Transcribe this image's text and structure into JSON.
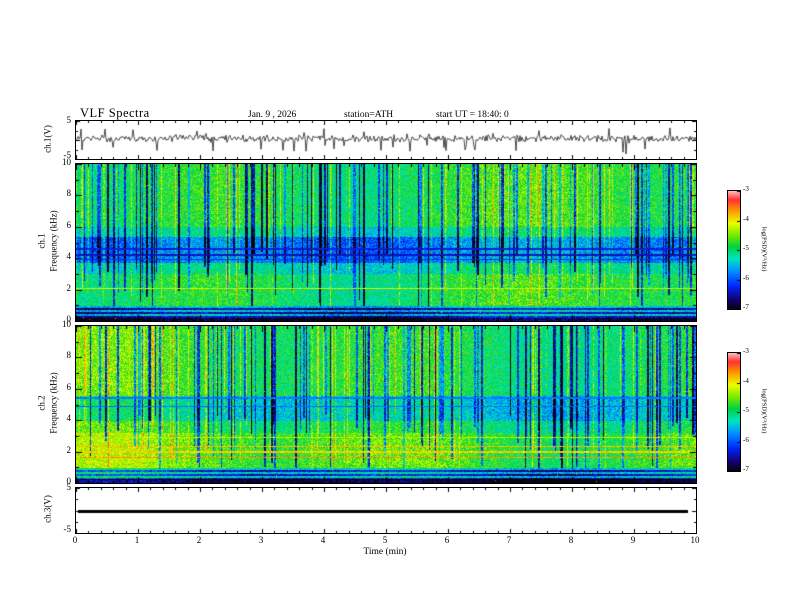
{
  "figure": {
    "title": "VLF Spectra",
    "date": "Jan. 9 , 2026",
    "station": "station=ATH",
    "start_ut": "start UT =  18:40: 0"
  },
  "xaxis": {
    "label": "Time (min)",
    "min": 0,
    "max": 10,
    "tick_labels": [
      "0",
      "1",
      "2",
      "3",
      "4",
      "5",
      "6",
      "7",
      "8",
      "9",
      "10"
    ]
  },
  "panels": [
    {
      "id": "wave1",
      "ylabel": "ch.1(V)",
      "ymin": -5,
      "ymax": 5,
      "ytick_labels": [
        "5",
        "-5"
      ]
    },
    {
      "id": "spec1",
      "ylabel_ch": "ch.1",
      "ylabel_freq": "Frequency (kHz)",
      "ymin": 0,
      "ymax": 10,
      "ytick_labels": [
        "10",
        "8",
        "6",
        "4",
        "2",
        "0"
      ]
    },
    {
      "id": "spec2",
      "ylabel_ch": "ch.2",
      "ylabel_freq": "Frequency (kHz)",
      "ymin": 0,
      "ymax": 10,
      "ytick_labels": [
        "10",
        "8",
        "6",
        "4",
        "2",
        "0"
      ]
    },
    {
      "id": "wave3",
      "ylabel": "ch.3(V)",
      "ymin": -5,
      "ymax": 5,
      "ytick_labels": [
        "5",
        "-5"
      ]
    }
  ],
  "colorbar": {
    "label": "log(PSD)(V²/Hz)",
    "tick_labels": [
      "-3",
      "-4",
      "-5",
      "-6",
      "-7"
    ],
    "zmin": -7,
    "zmax": -3
  },
  "chart_data": [
    {
      "type": "line",
      "title": "ch.1(V) time series",
      "xlabel": "Time (min)",
      "ylabel": "ch.1(V)",
      "xlim": [
        0,
        10
      ],
      "ylim": [
        -5,
        5
      ],
      "description": "Dense noisy waveform fluctuating around 0 V for the full 10 minutes, with frequent impulsive spikes, mostly downward, reaching roughly -4 V and occasional upward excursions near +3 V."
    },
    {
      "type": "heatmap",
      "title": "ch.1 VLF spectrogram",
      "xlabel": "Time (min)",
      "ylabel": "Frequency (kHz)",
      "xlim": [
        0,
        10
      ],
      "ylim": [
        0,
        10
      ],
      "zlabel": "log(PSD)(V²/Hz)",
      "zlim": [
        -7,
        -3
      ],
      "description": "Broadband green/cyan background near -5 with many narrow dark-blue vertical striations (impulsive sferics) extending from 10 kHz down to about 1 kHz, a quieter blue band around 3.5-5.5 kHz with dark horizontal lines near 4-4.7 kHz, a yellow enhancement near 2 kHz, scattered red/yellow hot spots, and nearly black horizontal banding below about 1 kHz."
    },
    {
      "type": "heatmap",
      "title": "ch.2 VLF spectrogram",
      "xlabel": "Time (min)",
      "ylabel": "Frequency (kHz)",
      "xlim": [
        0,
        10
      ],
      "ylim": [
        0,
        10
      ],
      "zlabel": "log(PSD)(V²/Hz)",
      "zlim": [
        -7,
        -3
      ],
      "description": "Similar to ch.1 but brighter (greener/yellower) below 3 kHz with persistent red/orange horizontal interference lines near 1.6-2.4 kHz, a moderately blue band around 4-5.5 kHz with dark lines near 4.9 and 5.4 kHz, dense dark-blue vertical striations above 1 kHz, and black banding below about 1 kHz."
    },
    {
      "type": "line",
      "title": "ch.3(V) time series",
      "xlabel": "Time (min)",
      "ylabel": "ch.3(V)",
      "xlim": [
        0,
        10
      ],
      "ylim": [
        -5,
        5
      ],
      "description": "Completely flat thick line at 0 V (no signal recorded)."
    }
  ],
  "render": {
    "cmap_stops": [
      [
        0.0,
        [
          5,
          5,
          5
        ]
      ],
      [
        0.08,
        [
          20,
          0,
          110
        ]
      ],
      [
        0.2,
        [
          0,
          40,
          255
        ]
      ],
      [
        0.33,
        [
          0,
          150,
          255
        ]
      ],
      [
        0.43,
        [
          0,
          230,
          190
        ]
      ],
      [
        0.53,
        [
          0,
          210,
          70
        ]
      ],
      [
        0.63,
        [
          120,
          235,
          0
        ]
      ],
      [
        0.73,
        [
          235,
          255,
          0
        ]
      ],
      [
        0.84,
        [
          255,
          150,
          0
        ]
      ],
      [
        0.93,
        [
          255,
          50,
          50
        ]
      ],
      [
        1.0,
        [
          255,
          185,
          185
        ]
      ]
    ],
    "spec1": {
      "seed": 1337,
      "bands": [
        [
          0,
          0.25,
          0.04
        ],
        [
          0.25,
          1,
          0.3
        ],
        [
          1,
          3,
          0.55
        ],
        [
          3,
          3.7,
          0.47
        ],
        [
          3.7,
          5.4,
          0.32
        ],
        [
          5.4,
          6,
          0.47
        ],
        [
          6,
          10.01,
          0.56
        ]
      ],
      "hlines": [
        [
          4.25,
          0.14,
          0.07
        ],
        [
          4.6,
          0.17,
          0.05
        ],
        [
          3.95,
          0.2,
          0.04
        ],
        [
          2.1,
          0.7,
          0.035
        ]
      ]
    },
    "spec2": {
      "seed": 4242,
      "bands": [
        [
          0,
          0.3,
          0.05
        ],
        [
          0.3,
          1,
          0.33
        ],
        [
          1,
          3.2,
          0.6
        ],
        [
          3.2,
          4,
          0.53
        ],
        [
          4,
          5.6,
          0.42
        ],
        [
          5.6,
          10.01,
          0.55
        ]
      ],
      "hlines": [
        [
          1.65,
          0.84,
          0.05
        ],
        [
          2.0,
          0.78,
          0.04
        ],
        [
          2.35,
          0.8,
          0.04
        ],
        [
          2.9,
          0.68,
          0.03
        ],
        [
          4.9,
          0.28,
          0.05
        ],
        [
          5.45,
          0.3,
          0.04
        ]
      ]
    },
    "wave1_seed": 777
  }
}
